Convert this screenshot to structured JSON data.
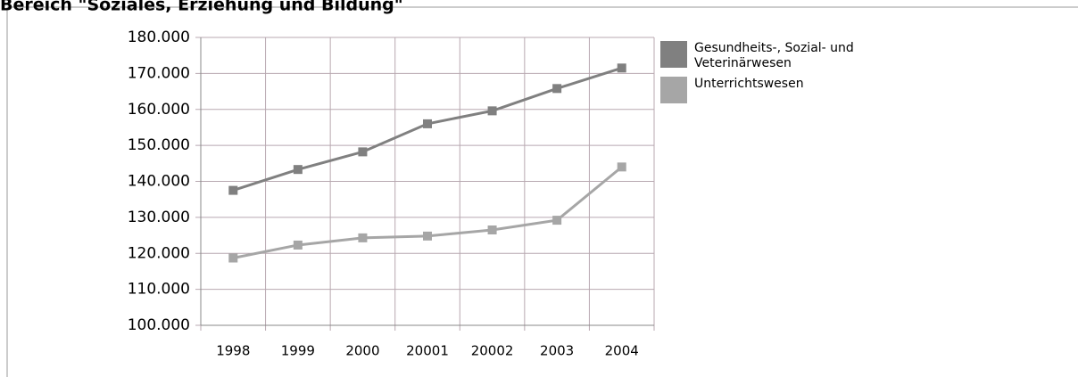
{
  "chart_data": {
    "type": "line",
    "title": "Bereich \"Soziales, Erziehung und Bildung\"",
    "categories": [
      "1998",
      "1999",
      "2000",
      "20001",
      "20002",
      "2003",
      "2004"
    ],
    "series": [
      {
        "name": "Gesundheits-, Sozial- und Veterinärwesen",
        "color": "#808080",
        "values": [
          137500,
          143300,
          148200,
          156000,
          159600,
          165800,
          171500
        ]
      },
      {
        "name": "Unterrichtswesen",
        "color": "#a6a6a6",
        "values": [
          118700,
          122300,
          124300,
          124800,
          126500,
          129200,
          144000
        ]
      }
    ],
    "ylim": [
      100000,
      180000
    ],
    "yticks": [
      {
        "value": 100000,
        "label": "100.000"
      },
      {
        "value": 110000,
        "label": "110.000"
      },
      {
        "value": 120000,
        "label": "120.000"
      },
      {
        "value": 130000,
        "label": "130.000"
      },
      {
        "value": 140000,
        "label": "140.000"
      },
      {
        "value": 150000,
        "label": "150.000"
      },
      {
        "value": 160000,
        "label": "160.000"
      },
      {
        "value": 170000,
        "label": "170.000"
      },
      {
        "value": 180000,
        "label": "180.000"
      }
    ],
    "grid": true,
    "legend": "right"
  }
}
